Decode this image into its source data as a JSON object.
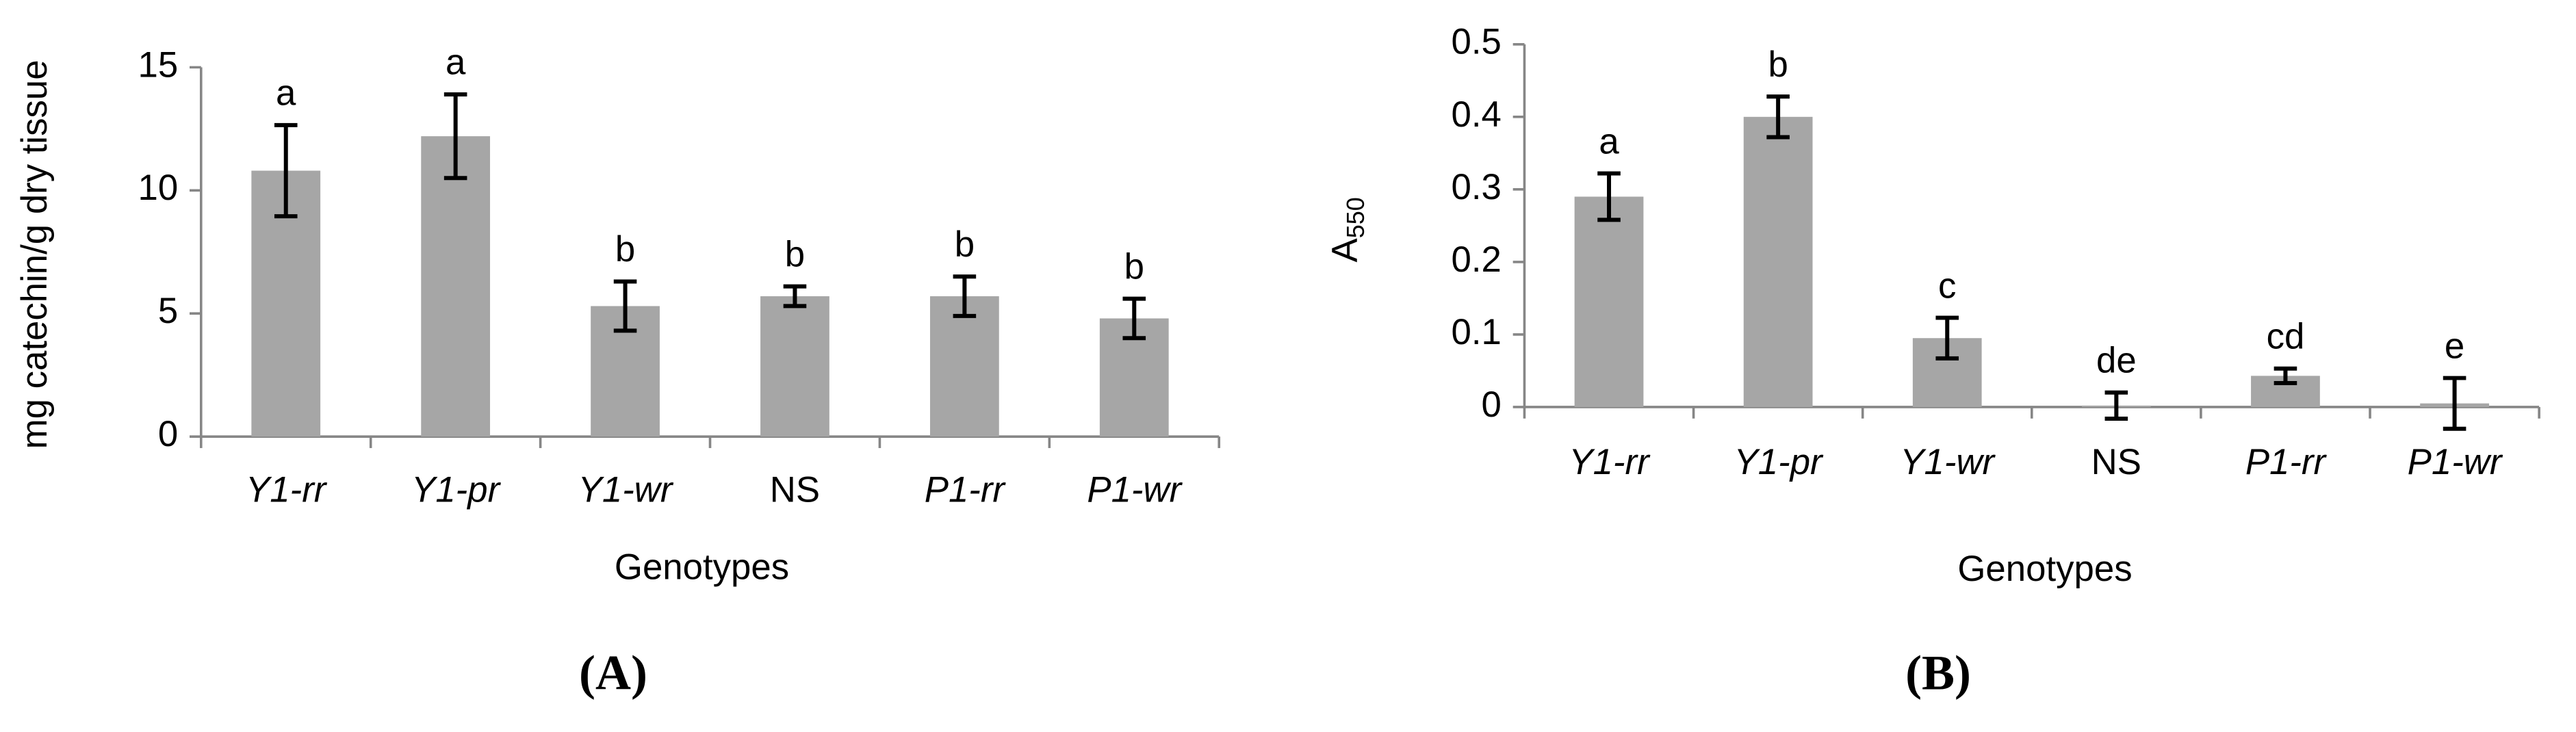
{
  "chart_data": [
    {
      "type": "bar",
      "panel_label": "(A)",
      "x_label": "Genotypes",
      "y_label": "mg catechin/g dry tissue",
      "categories": [
        "Y1-rr",
        "Y1-pr",
        "Y1-wr",
        "NS",
        "P1-rr",
        "P1-wr"
      ],
      "italic_categories": [
        true,
        true,
        true,
        false,
        true,
        true
      ],
      "values": [
        10.8,
        12.2,
        5.3,
        5.7,
        5.7,
        4.8
      ],
      "errors": [
        1.85,
        1.7,
        1.0,
        0.4,
        0.8,
        0.8
      ],
      "letters": [
        "a",
        "a",
        "b",
        "b",
        "b",
        "b"
      ],
      "color": "#a6a6a6",
      "ylim": [
        0,
        15
      ],
      "yticks": [
        0,
        5,
        10,
        15
      ]
    },
    {
      "type": "bar",
      "panel_label": "(B)",
      "x_label": "Genotypes",
      "y_label": "A",
      "y_label_sub": "550",
      "categories": [
        "Y1-rr",
        "Y1-pr",
        "Y1-wr",
        "NS",
        "P1-rr",
        "P1-wr"
      ],
      "italic_categories": [
        true,
        true,
        true,
        false,
        true,
        true
      ],
      "values": [
        0.29,
        0.4,
        0.095,
        0.002,
        0.043,
        0.005
      ],
      "errors": [
        0.032,
        0.028,
        0.028,
        0.018,
        0.01,
        0.035
      ],
      "letters": [
        "a",
        "b",
        "c",
        "de",
        "cd",
        "e"
      ],
      "color": "#a6a6a6",
      "ylim": [
        0,
        0.5
      ],
      "yticks": [
        0,
        0.1,
        0.2,
        0.3,
        0.4,
        0.5
      ]
    }
  ]
}
